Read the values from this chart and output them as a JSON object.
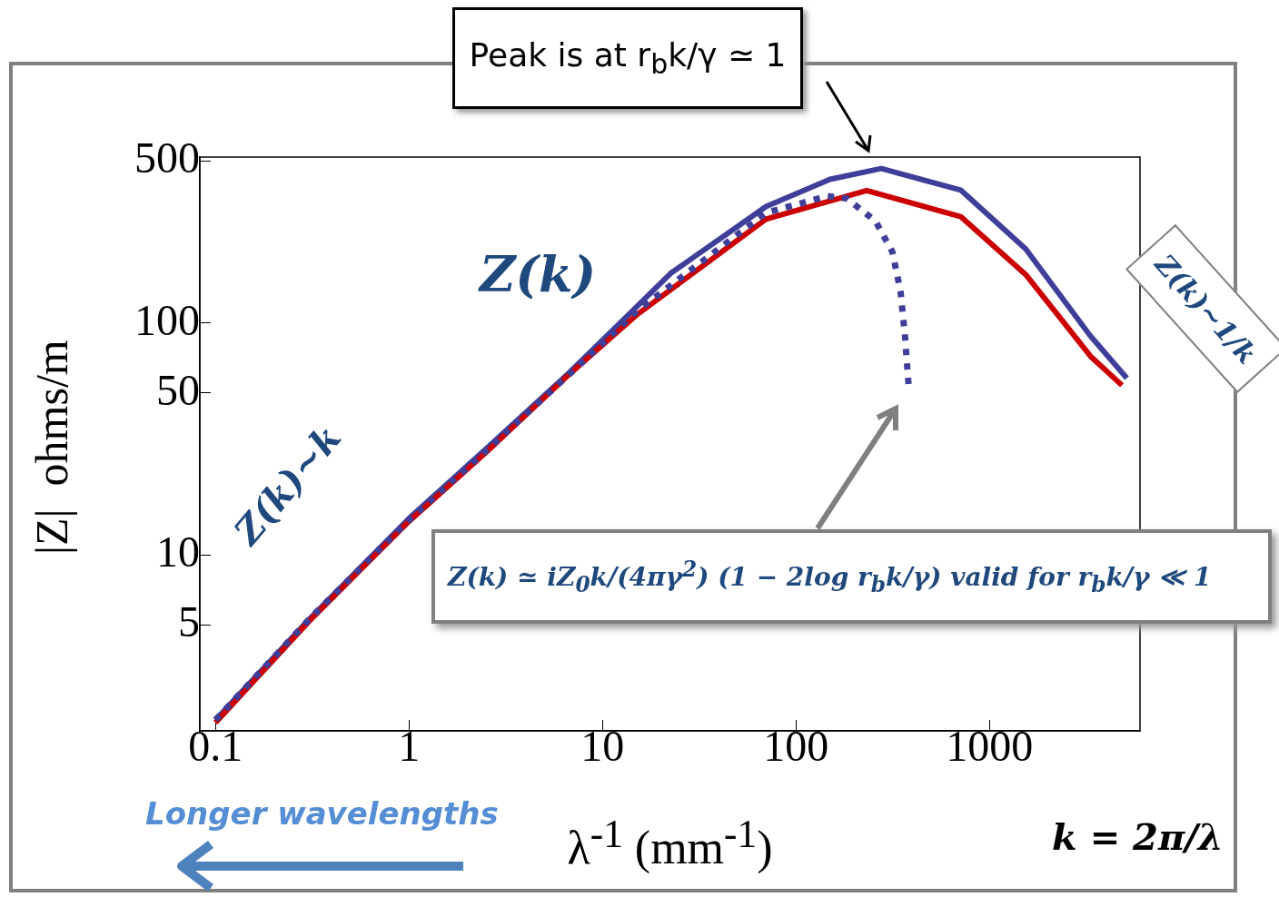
{
  "chart_data": {
    "type": "line",
    "xlabel": "λ$^{-1}$ (mm$^{-1}$)",
    "ylabel": "|Z|  ohms/m",
    "log": "xy",
    "xlim": [
      0.083,
      6000
    ],
    "xticks": [
      0.1,
      1,
      10,
      100,
      1000
    ],
    "ylim": [
      1.75,
      520
    ],
    "yticks": [
      5,
      10,
      50,
      100,
      500
    ],
    "series": [
      {
        "color": "#3f3f9a",
        "line_style": "solid",
        "x": [
          0.1,
          0.305,
          1,
          2.53,
          6.7,
          14.9,
          22.5,
          70,
          150,
          276,
          710,
          1540,
          3330,
          5130
        ],
        "values": [
          1.95,
          5.3,
          14.4,
          29,
          61,
          117,
          164,
          318,
          417,
          464,
          375,
          209,
          88,
          58
        ]
      },
      {
        "color": "#cc0000",
        "line_style": "solid",
        "x": [
          0.1,
          0.305,
          1,
          2.53,
          6.7,
          14.9,
          70,
          232,
          710,
          1540,
          3330,
          4840
        ],
        "values": [
          1.9,
          5.2,
          14,
          28,
          60,
          108,
          281,
          373,
          288,
          162,
          72,
          54
        ]
      },
      {
        "color": "#3f3f9a",
        "line_style": "dotted",
        "x": [
          0.1,
          0.305,
          1,
          2.53,
          6.7,
          14.9,
          70,
          145,
          183,
          258,
          315,
          347,
          366,
          382
        ],
        "values": [
          1.95,
          5.3,
          14.2,
          28.5,
          60,
          112,
          299,
          353,
          345,
          275,
          203,
          137,
          88,
          54
        ]
      }
    ],
    "annotations": [
      "Peak is at r$_{b}$k/γ ≃ 1",
      "Z(k)",
      "Z(k)~k",
      "Z(k)~1/k",
      "Z(k) ≃ iZ$_{0}$k/(4πγ$^{2}$) (1 − 2log r$_{b}$k/γ)   valid for r$_{b}$k/γ ≪ 1",
      "Longer wavelengths",
      "k = 2π/λ"
    ]
  }
}
